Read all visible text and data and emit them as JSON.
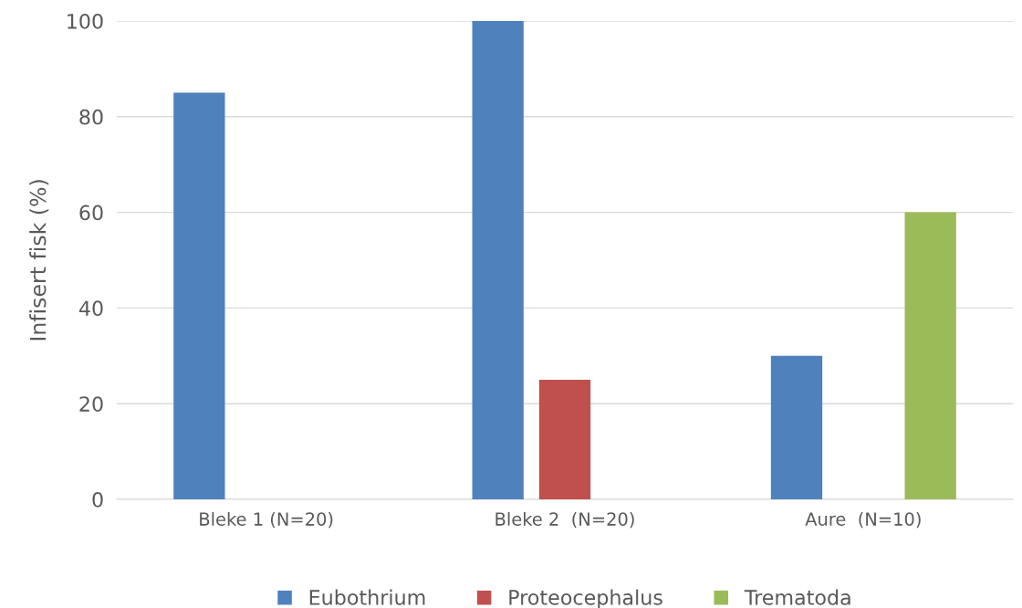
{
  "chart_data": {
    "type": "bar",
    "ylabel": "Infisert fisk (%)",
    "categories": [
      "Bleke 1 (N=20)",
      "Bleke 2  (N=20)",
      "Aure  (N=10)"
    ],
    "series": [
      {
        "name": "Eubothrium",
        "color": "#4f81bd",
        "values": [
          85,
          100,
          30
        ]
      },
      {
        "name": "Proteocephalus",
        "color": "#c0504d",
        "values": [
          0,
          25,
          0
        ]
      },
      {
        "name": "Trematoda",
        "color": "#9bbb59",
        "values": [
          0,
          0,
          60
        ]
      }
    ],
    "ylim": [
      0,
      100
    ],
    "yticks": [
      0,
      20,
      40,
      60,
      80,
      100
    ],
    "grid": "y",
    "legend": "bottom"
  }
}
